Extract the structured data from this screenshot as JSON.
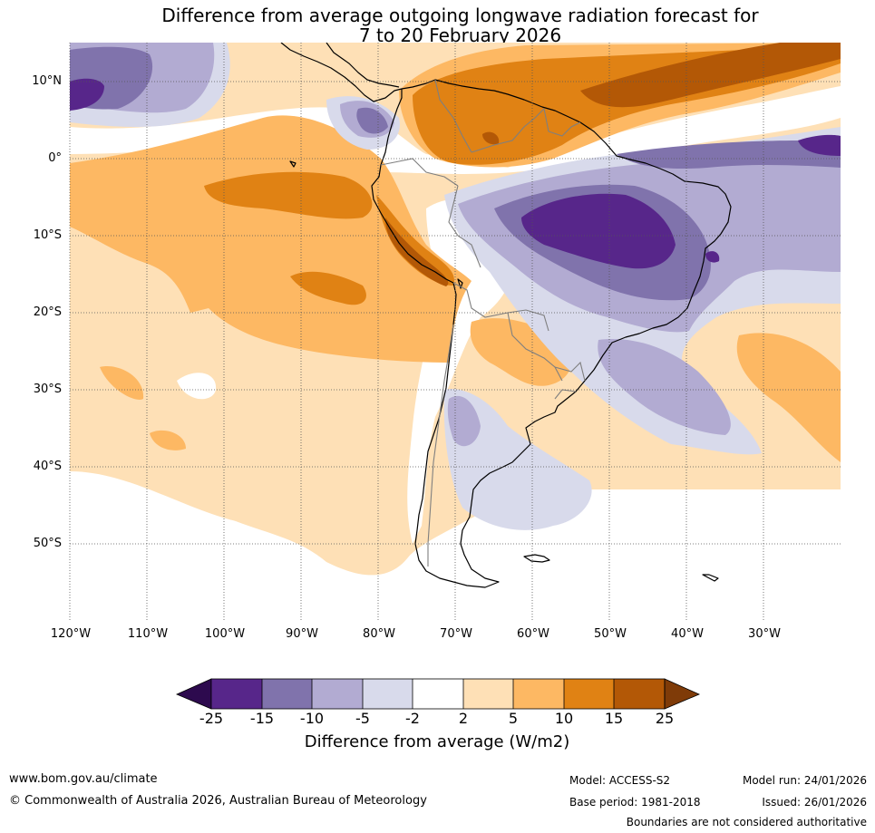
{
  "title": {
    "line1": "Difference from average outgoing longwave radiation forecast for",
    "line2": "7 to 20 February 2026"
  },
  "map": {
    "lat_labels": [
      "10°N",
      "0°",
      "10°S",
      "20°S",
      "30°S",
      "40°S",
      "50°S"
    ],
    "lon_labels": [
      "120°W",
      "110°W",
      "100°W",
      "90°W",
      "80°W",
      "70°W",
      "60°W",
      "50°W",
      "40°W",
      "30°W"
    ],
    "colors": {
      "minus_25_below": "#2d0a4e",
      "minus_25_15": "#57268a",
      "minus_15_10": "#8073ac",
      "minus_10_5": "#b2abd2",
      "minus_5_2": "#d8daeb",
      "neutral": "#ffffff",
      "plus_2_5": "#fee0b6",
      "plus_5_10": "#fdb863",
      "plus_10_15": "#e08214",
      "plus_15_25": "#b35806",
      "plus_25_above": "#7f3b08",
      "coast": "#000000",
      "border": "#7f7f7f",
      "grid": "#555555"
    }
  },
  "colorbar": {
    "ticks": [
      "-25",
      "-15",
      "-10",
      "-5",
      "-2",
      "2",
      "5",
      "10",
      "15",
      "25"
    ],
    "label": "Difference from average (W/m2)"
  },
  "footer": {
    "website": "www.bom.gov.au/climate",
    "copyright": "© Commonwealth of Australia 2026, Australian Bureau of Meteorology",
    "model": "Model: ACCESS-S2",
    "base_period": "Base period: 1981-2018",
    "model_run": "Model run: 24/01/2026",
    "issued": "Issued: 26/01/2026",
    "disclaimer": "Boundaries are not considered authoritative"
  }
}
